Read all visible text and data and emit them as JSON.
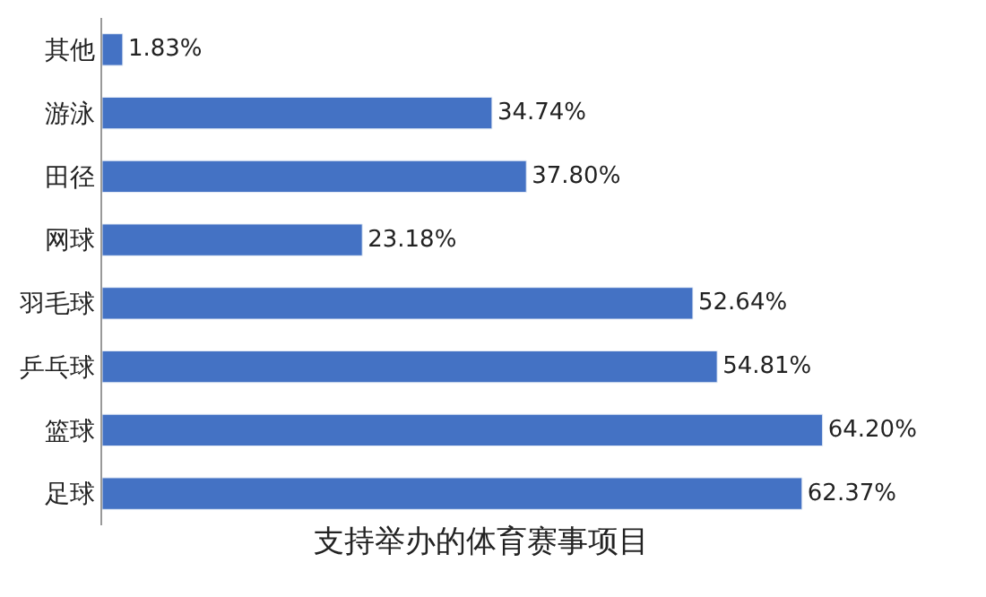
{
  "chart_data": {
    "type": "bar",
    "orientation": "horizontal",
    "xlabel": "支持举办的体育赛事项目",
    "categories": [
      "其他",
      "游泳",
      "田径",
      "网球",
      "羽毛球",
      "乒乓球",
      "篮球",
      "足球"
    ],
    "values": [
      1.83,
      34.74,
      37.8,
      23.18,
      52.64,
      54.81,
      64.2,
      62.37
    ],
    "value_labels": [
      "1.83%",
      "34.74%",
      "37.80%",
      "23.18%",
      "52.64%",
      "54.81%",
      "64.20%",
      "62.37%"
    ],
    "color": "#4472c4"
  }
}
